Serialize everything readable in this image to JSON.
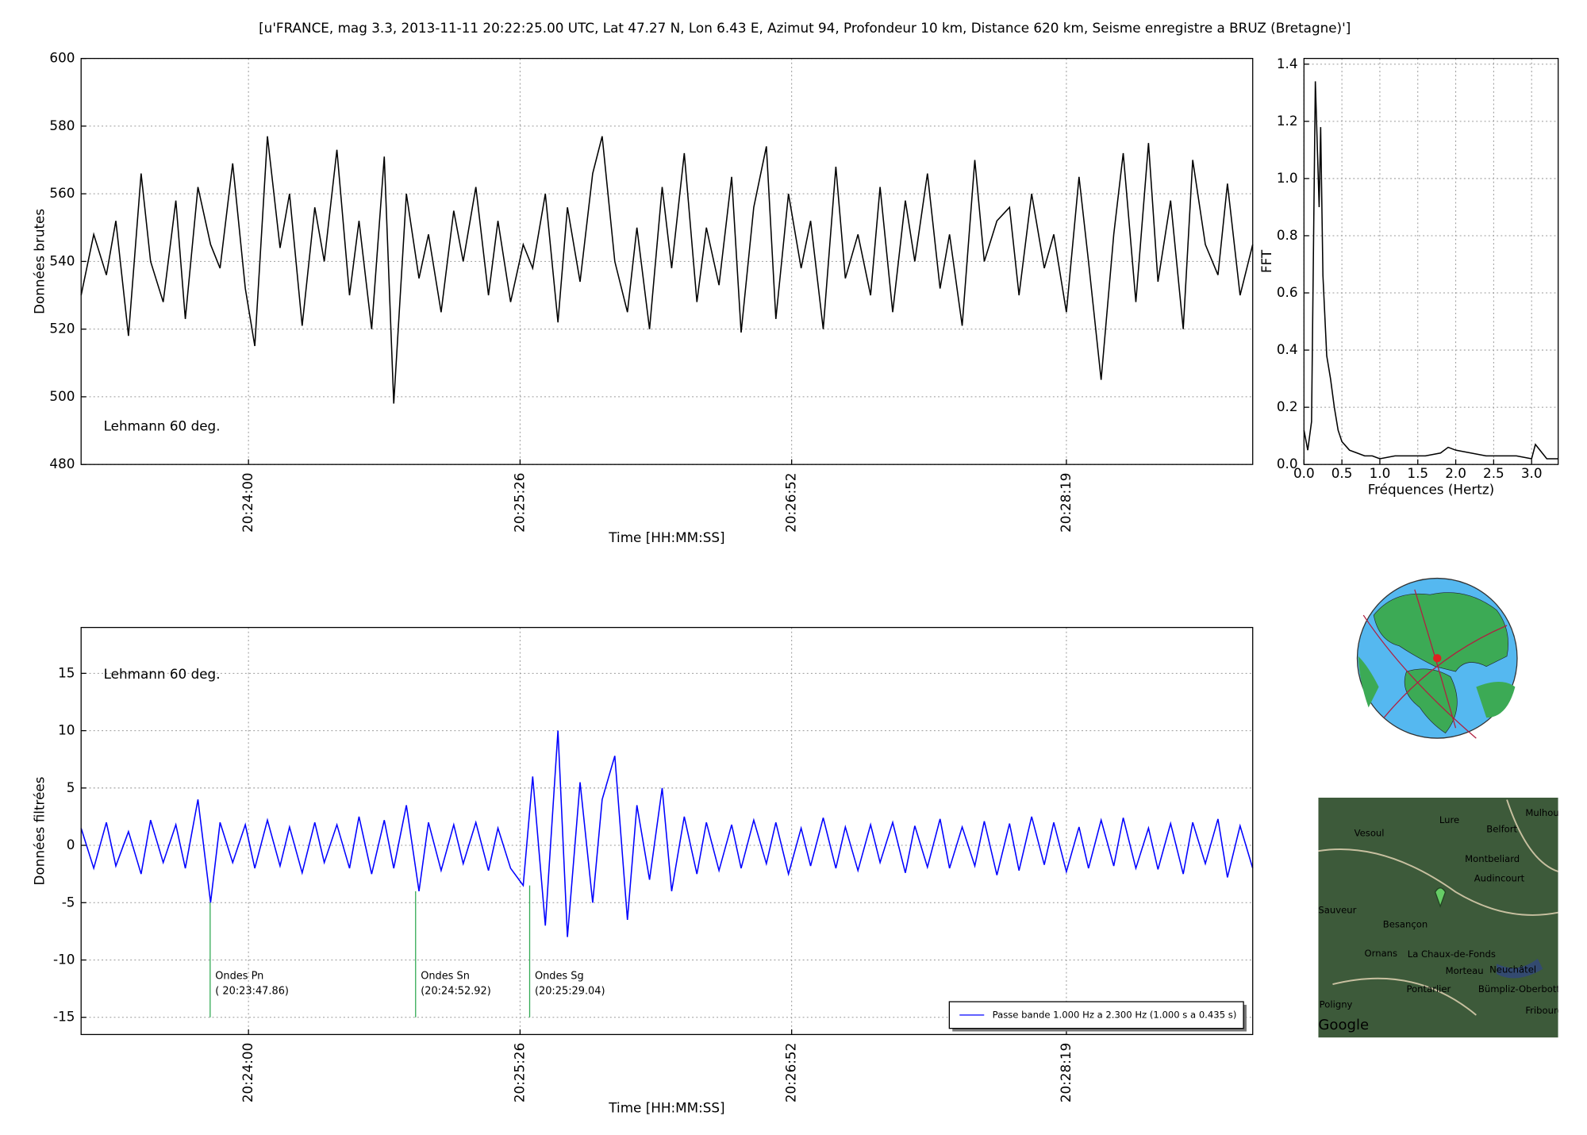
{
  "title": "[u'FRANCE, mag 3.3, 2013-11-11 20:22:25.00 UTC, Lat 47.27 N, Lon 6.43 E, Azimut 94, Profondeur 10 km, Distance 620 km, Seisme enregistre a BRUZ (Bretagne)']",
  "chart_data": [
    {
      "type": "line",
      "xlabel": "Time [HH:MM:SS]",
      "ylabel": "Données brutes",
      "grid": true,
      "x": [
        "20:23:07",
        "20:23:11",
        "20:23:15",
        "20:23:18",
        "20:23:22",
        "20:23:26",
        "20:23:29",
        "20:23:33",
        "20:23:37",
        "20:23:40",
        "20:23:44",
        "20:23:48",
        "20:23:51",
        "20:23:55",
        "20:23:59",
        "20:24:02",
        "20:24:06",
        "20:24:10",
        "20:24:13",
        "20:24:17",
        "20:24:21",
        "20:24:24",
        "20:24:28",
        "20:24:32",
        "20:24:35",
        "20:24:39",
        "20:24:43",
        "20:24:46",
        "20:24:50",
        "20:24:54",
        "20:24:57",
        "20:25:01",
        "20:25:05",
        "20:25:08",
        "20:25:12",
        "20:25:16",
        "20:25:19",
        "20:25:23",
        "20:25:27",
        "20:25:30",
        "20:25:34",
        "20:25:38",
        "20:25:41",
        "20:25:45",
        "20:25:49",
        "20:25:52",
        "20:25:56",
        "20:26:00",
        "20:26:03",
        "20:26:07",
        "20:26:11",
        "20:26:14",
        "20:26:18",
        "20:26:22",
        "20:26:25",
        "20:26:29",
        "20:26:33",
        "20:26:36",
        "20:26:40",
        "20:26:44",
        "20:26:47",
        "20:26:51",
        "20:26:55",
        "20:26:58",
        "20:27:02",
        "20:27:06",
        "20:27:09",
        "20:27:13",
        "20:27:17",
        "20:27:20",
        "20:27:24",
        "20:27:28",
        "20:27:31",
        "20:27:35",
        "20:27:39",
        "20:27:42",
        "20:27:46",
        "20:27:50",
        "20:27:53",
        "20:27:57",
        "20:28:01",
        "20:28:04",
        "20:28:08",
        "20:28:12",
        "20:28:15",
        "20:28:19",
        "20:28:23",
        "20:28:26",
        "20:28:30",
        "20:28:34",
        "20:28:37",
        "20:28:41",
        "20:28:45",
        "20:28:48",
        "20:28:52",
        "20:28:56",
        "20:28:59",
        "20:29:03",
        "20:29:07",
        "20:29:10",
        "20:29:14",
        "20:29:18"
      ],
      "series": [
        {
          "color": "#000000",
          "values": [
            530,
            548,
            536,
            552,
            518,
            566,
            540,
            528,
            558,
            523,
            562,
            545,
            538,
            569,
            532,
            515,
            577,
            544,
            560,
            521,
            556,
            540,
            573,
            530,
            552,
            520,
            571,
            498,
            560,
            535,
            548,
            525,
            555,
            540,
            562,
            530,
            552,
            528,
            545,
            538,
            560,
            522,
            556,
            534,
            566,
            577,
            540,
            525,
            550,
            520,
            562,
            538,
            572,
            528,
            550,
            533,
            565,
            519,
            556,
            574,
            523,
            560,
            538,
            552,
            520,
            568,
            535,
            548,
            530,
            562,
            525,
            558,
            540,
            566,
            532,
            548,
            521,
            570,
            540,
            552,
            556,
            530,
            560,
            538,
            548,
            525,
            565,
            540,
            505,
            548,
            572,
            528,
            575,
            534,
            558,
            520,
            570,
            545,
            536,
            563,
            530,
            545
          ]
        }
      ],
      "xlim": [
        "20:23:07",
        "20:29:18"
      ],
      "xticks": [
        "20:24:00",
        "20:25:26",
        "20:26:52",
        "20:28:19"
      ],
      "ylim": [
        480,
        600
      ],
      "yticks": [
        480,
        500,
        520,
        540,
        560,
        580,
        600
      ],
      "annotations": [
        {
          "text": "Lehmann 60 deg.",
          "color": "#f08080"
        }
      ]
    },
    {
      "type": "line",
      "xlabel": "Fréquences (Hertz)",
      "ylabel": "FFT",
      "grid": true,
      "x": [
        0,
        0.05,
        0.1,
        0.15,
        0.2,
        0.22,
        0.25,
        0.3,
        0.35,
        0.4,
        0.45,
        0.5,
        0.6,
        0.7,
        0.8,
        0.9,
        1.0,
        1.2,
        1.4,
        1.6,
        1.8,
        1.9,
        2.0,
        2.2,
        2.4,
        2.6,
        2.8,
        3.0,
        3.05,
        3.2,
        3.35
      ],
      "series": [
        {
          "color": "#000000",
          "values": [
            0.12,
            0.05,
            0.15,
            1.34,
            0.9,
            1.18,
            0.66,
            0.38,
            0.3,
            0.2,
            0.12,
            0.08,
            0.05,
            0.04,
            0.03,
            0.03,
            0.02,
            0.03,
            0.03,
            0.03,
            0.04,
            0.06,
            0.05,
            0.04,
            0.03,
            0.03,
            0.03,
            0.02,
            0.07,
            0.02,
            0.02
          ]
        }
      ],
      "xlim": [
        0,
        3.35
      ],
      "xticks": [
        {
          "value": 0,
          "label": "0.0"
        },
        0.5,
        {
          "value": 1,
          "label": "1.0"
        },
        1.5,
        {
          "value": 2,
          "label": "2.0"
        },
        2.5,
        {
          "value": 3,
          "label": "3.0"
        }
      ],
      "ylim": [
        0,
        1.42
      ],
      "yticks": [
        {
          "value": 0,
          "label": "0.0"
        },
        0.2,
        0.4,
        0.6,
        0.8,
        {
          "value": 1,
          "label": "1.0"
        },
        1.2,
        1.4
      ]
    },
    {
      "type": "line",
      "xlabel": "Time [HH:MM:SS]",
      "ylabel": "Données filtrées",
      "grid": true,
      "legend": "lower right",
      "x": [
        "20:23:07",
        "20:23:11",
        "20:23:15",
        "20:23:18",
        "20:23:22",
        "20:23:26",
        "20:23:29",
        "20:23:33",
        "20:23:37",
        "20:23:40",
        "20:23:44",
        "20:23:48",
        "20:23:51",
        "20:23:55",
        "20:23:59",
        "20:24:02",
        "20:24:06",
        "20:24:10",
        "20:24:13",
        "20:24:17",
        "20:24:21",
        "20:24:24",
        "20:24:28",
        "20:24:32",
        "20:24:35",
        "20:24:39",
        "20:24:43",
        "20:24:46",
        "20:24:50",
        "20:24:54",
        "20:24:57",
        "20:25:01",
        "20:25:05",
        "20:25:08",
        "20:25:12",
        "20:25:16",
        "20:25:19",
        "20:25:23",
        "20:25:27",
        "20:25:30",
        "20:25:34",
        "20:25:38",
        "20:25:41",
        "20:25:45",
        "20:25:49",
        "20:25:52",
        "20:25:56",
        "20:26:00",
        "20:26:03",
        "20:26:07",
        "20:26:11",
        "20:26:14",
        "20:26:18",
        "20:26:22",
        "20:26:25",
        "20:26:29",
        "20:26:33",
        "20:26:36",
        "20:26:40",
        "20:26:44",
        "20:26:47",
        "20:26:51",
        "20:26:55",
        "20:26:58",
        "20:27:02",
        "20:27:06",
        "20:27:09",
        "20:27:13",
        "20:27:17",
        "20:27:20",
        "20:27:24",
        "20:27:28",
        "20:27:31",
        "20:27:35",
        "20:27:39",
        "20:27:42",
        "20:27:46",
        "20:27:50",
        "20:27:53",
        "20:27:57",
        "20:28:01",
        "20:28:04",
        "20:28:08",
        "20:28:12",
        "20:28:15",
        "20:28:19",
        "20:28:23",
        "20:28:26",
        "20:28:30",
        "20:28:34",
        "20:28:37",
        "20:28:41",
        "20:28:45",
        "20:28:48",
        "20:28:52",
        "20:28:56",
        "20:28:59",
        "20:29:03",
        "20:29:07",
        "20:29:10",
        "20:29:14",
        "20:29:18"
      ],
      "series": [
        {
          "name": "Passe bande 1.000 Hz a 2.300 Hz (1.000 s a 0.435 s)",
          "color": "#0000ff",
          "values": [
            1.5,
            -2,
            2,
            -1.8,
            1.2,
            -2.5,
            2.2,
            -1.5,
            1.8,
            -2,
            4,
            -5,
            2,
            -1.5,
            1.8,
            -2,
            2.2,
            -1.8,
            1.6,
            -2.4,
            2,
            -1.5,
            1.8,
            -2,
            2.5,
            -2.5,
            2.2,
            -2,
            3.5,
            -4,
            2,
            -2.2,
            1.8,
            -1.6,
            2,
            -2.2,
            1.5,
            -2,
            -3.5,
            6,
            -7,
            10,
            -8,
            5.5,
            -5,
            4,
            7.8,
            -6.5,
            3.5,
            -3,
            5,
            -4,
            2.5,
            -2.5,
            2,
            -2.2,
            1.8,
            -2,
            2.2,
            -1.6,
            2,
            -2.5,
            1.5,
            -1.8,
            2.4,
            -2,
            1.6,
            -2.2,
            1.8,
            -1.5,
            2,
            -2.4,
            1.7,
            -1.9,
            2.3,
            -2,
            1.6,
            -1.8,
            2.1,
            -2.6,
            1.9,
            -2.2,
            2.5,
            -1.7,
            2,
            -2.3,
            1.6,
            -2,
            2.2,
            -1.8,
            2.4,
            -2,
            1.5,
            -2.1,
            1.9,
            -2.5,
            2,
            -1.6,
            2.3,
            -2.8,
            1.7,
            -2
          ]
        }
      ],
      "xlim": [
        "20:23:07",
        "20:29:18"
      ],
      "xticks": [
        "20:24:00",
        "20:25:26",
        "20:26:52",
        "20:28:19"
      ],
      "ylim": [
        -16.5,
        19
      ],
      "yticks": [
        -15,
        -10,
        -5,
        0,
        5,
        10,
        15
      ],
      "annotations": [
        {
          "text": "Lehmann 60 deg.",
          "color": "#c080c0"
        }
      ],
      "phases": [
        {
          "name": "Ondes Pn",
          "label": "( 20:23:47.86)",
          "x": "20:23:47.86",
          "y": [
            -5,
            -15
          ],
          "color": "#33aa55"
        },
        {
          "name": "Ondes Sn",
          "label": "(20:24:52.92)",
          "x": "20:24:52.92",
          "y": [
            -4,
            -15
          ],
          "color": "#33aa55"
        },
        {
          "name": "Ondes Sg",
          "label": "(20:25:29.04)",
          "x": "20:25:29.04",
          "y": [
            -3.5,
            -15
          ],
          "color": "#33aa55"
        }
      ]
    }
  ],
  "map": {
    "labels": [
      "Mulhouse",
      "Lure",
      "Belfort",
      "Vesoul",
      "Montbeliard",
      "Audincourt",
      "Besançon",
      "Sauveur",
      "Ornans",
      "La Chaux-de-Fonds",
      "Morteau",
      "Neuchâtel",
      "Pontarlier",
      "Bümpliz-Oberbottigen",
      "Poligny",
      "Fribourg",
      "Google"
    ]
  }
}
